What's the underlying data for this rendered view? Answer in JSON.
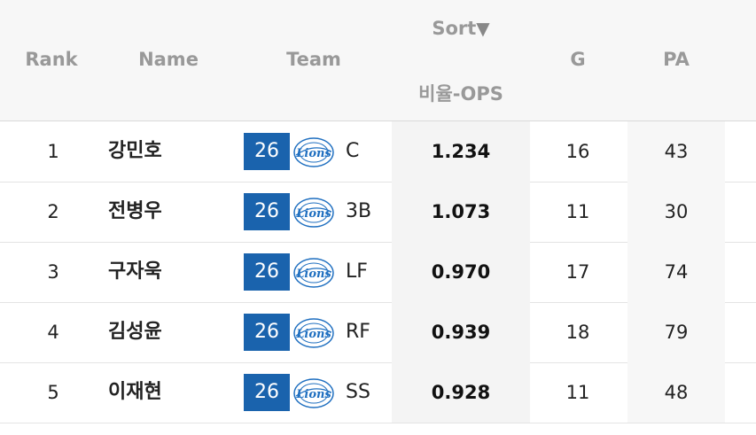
{
  "header": {
    "rank": "Rank",
    "name": "Name",
    "team": "Team",
    "sort_label": "Sort",
    "sort_arrow": "▼",
    "sort_column": "비율-OPS",
    "g": "G",
    "pa": "PA"
  },
  "colors": {
    "team_badge": "#1a63ad",
    "logo_blue": "#1f6fc0",
    "header_text": "#999999"
  },
  "rows": [
    {
      "rank": "1",
      "name": "강민호",
      "number": "26",
      "logo": "lions-logo",
      "pos": "C",
      "ops": "1.234",
      "g": "16",
      "pa": "43"
    },
    {
      "rank": "2",
      "name": "전병우",
      "number": "26",
      "logo": "lions-logo",
      "pos": "3B",
      "ops": "1.073",
      "g": "11",
      "pa": "30"
    },
    {
      "rank": "3",
      "name": "구자욱",
      "number": "26",
      "logo": "lions-logo",
      "pos": "LF",
      "ops": "0.970",
      "g": "17",
      "pa": "74"
    },
    {
      "rank": "4",
      "name": "김성윤",
      "number": "26",
      "logo": "lions-logo",
      "pos": "RF",
      "ops": "0.939",
      "g": "18",
      "pa": "79"
    },
    {
      "rank": "5",
      "name": "이재현",
      "number": "26",
      "logo": "lions-logo",
      "pos": "SS",
      "ops": "0.928",
      "g": "11",
      "pa": "48"
    }
  ]
}
